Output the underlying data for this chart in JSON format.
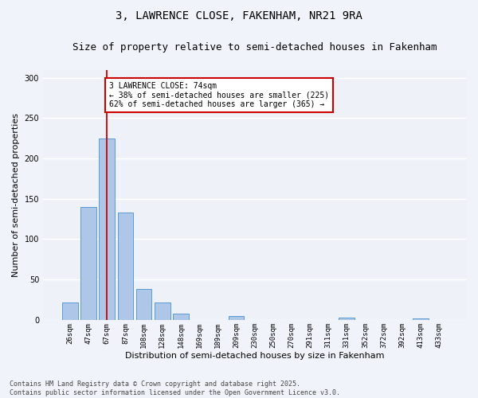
{
  "title_line1": "3, LAWRENCE CLOSE, FAKENHAM, NR21 9RA",
  "title_line2": "Size of property relative to semi-detached houses in Fakenham",
  "xlabel": "Distribution of semi-detached houses by size in Fakenham",
  "ylabel": "Number of semi-detached properties",
  "footnote": "Contains HM Land Registry data © Crown copyright and database right 2025.\nContains public sector information licensed under the Open Government Licence v3.0.",
  "bar_labels": [
    "26sqm",
    "47sqm",
    "67sqm",
    "87sqm",
    "108sqm",
    "128sqm",
    "148sqm",
    "169sqm",
    "189sqm",
    "209sqm",
    "230sqm",
    "250sqm",
    "270sqm",
    "291sqm",
    "311sqm",
    "331sqm",
    "352sqm",
    "372sqm",
    "392sqm",
    "413sqm",
    "433sqm"
  ],
  "bar_heights": [
    22,
    140,
    225,
    133,
    38,
    22,
    8,
    0,
    0,
    5,
    0,
    0,
    0,
    0,
    0,
    3,
    0,
    0,
    0,
    2,
    0
  ],
  "bar_color": "#aec6e8",
  "bar_edge_color": "#5b9bd5",
  "vline_x": 2,
  "vline_color": "#cc0000",
  "annotation_text": "3 LAWRENCE CLOSE: 74sqm\n← 38% of semi-detached houses are smaller (225)\n62% of semi-detached houses are larger (365) →",
  "annotation_box_color": "#ffffff",
  "annotation_box_edge_color": "#cc0000",
  "ylim": [
    0,
    310
  ],
  "yticks": [
    0,
    50,
    100,
    150,
    200,
    250,
    300
  ],
  "bg_color": "#eef2f8",
  "grid_color": "#ffffff",
  "title_fontsize": 10,
  "subtitle_fontsize": 9,
  "axis_label_fontsize": 8,
  "tick_fontsize": 6.5,
  "annotation_fontsize": 7,
  "footnote_fontsize": 6
}
